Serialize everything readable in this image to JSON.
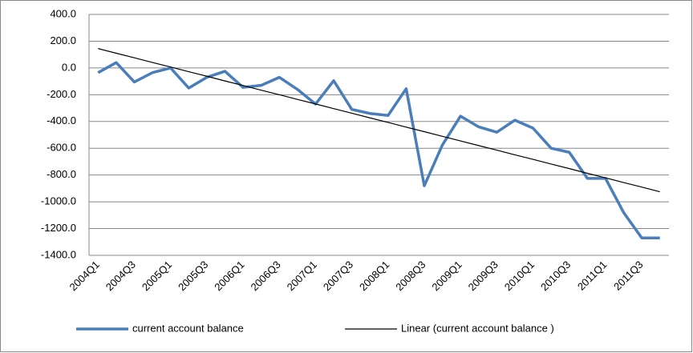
{
  "chart_data": {
    "type": "line",
    "categories": [
      "2004Q1",
      null,
      "2004Q3",
      null,
      "2005Q1",
      null,
      "2005Q3",
      null,
      "2006Q1",
      null,
      "2006Q3",
      null,
      "2007Q1",
      null,
      "2007Q3",
      null,
      "2008Q1",
      null,
      "2008Q3",
      null,
      "2009Q1",
      null,
      "2009Q3",
      null,
      "2010Q1",
      null,
      "2010Q3",
      null,
      "2011Q1",
      null,
      "2011Q3",
      null
    ],
    "series": [
      {
        "name": "current account balance",
        "color": "#4a7ebb",
        "values": [
          -35,
          40,
          -105,
          -35,
          0,
          -150,
          -70,
          -25,
          -145,
          -130,
          -70,
          -160,
          -270,
          -95,
          -310,
          -340,
          -355,
          -155,
          -880,
          -575,
          -360,
          -440,
          -480,
          -390,
          -450,
          -600,
          -630,
          -825,
          -825,
          -1080,
          -1270,
          -1270
        ]
      },
      {
        "name": "Linear (current account balance )",
        "color": "#000000",
        "values": [
          145,
          110,
          76,
          41,
          7,
          -28,
          -62,
          -97,
          -131,
          -166,
          -200,
          -235,
          -269,
          -304,
          -338,
          -373,
          -407,
          -442,
          -476,
          -511,
          -545,
          -580,
          -614,
          -649,
          -683,
          -718,
          -752,
          -787,
          -821,
          -856,
          -890,
          -925
        ]
      }
    ],
    "ylim": [
      -1400,
      400
    ],
    "yticks": [
      {
        "value": -1400,
        "label": "-1400.0"
      },
      {
        "value": -1200,
        "label": "-1200.0"
      },
      {
        "value": -1000,
        "label": "-1000.0"
      },
      {
        "value": -800,
        "label": "-800.0"
      },
      {
        "value": -600,
        "label": "-600.0"
      },
      {
        "value": -400,
        "label": "-400.0"
      },
      {
        "value": -200,
        "label": "-200.0"
      },
      {
        "value": 0,
        "label": "0.0"
      },
      {
        "value": 200,
        "label": "200.0"
      },
      {
        "value": 400,
        "label": "400.0"
      }
    ],
    "grid": true,
    "legend": "bottom"
  }
}
